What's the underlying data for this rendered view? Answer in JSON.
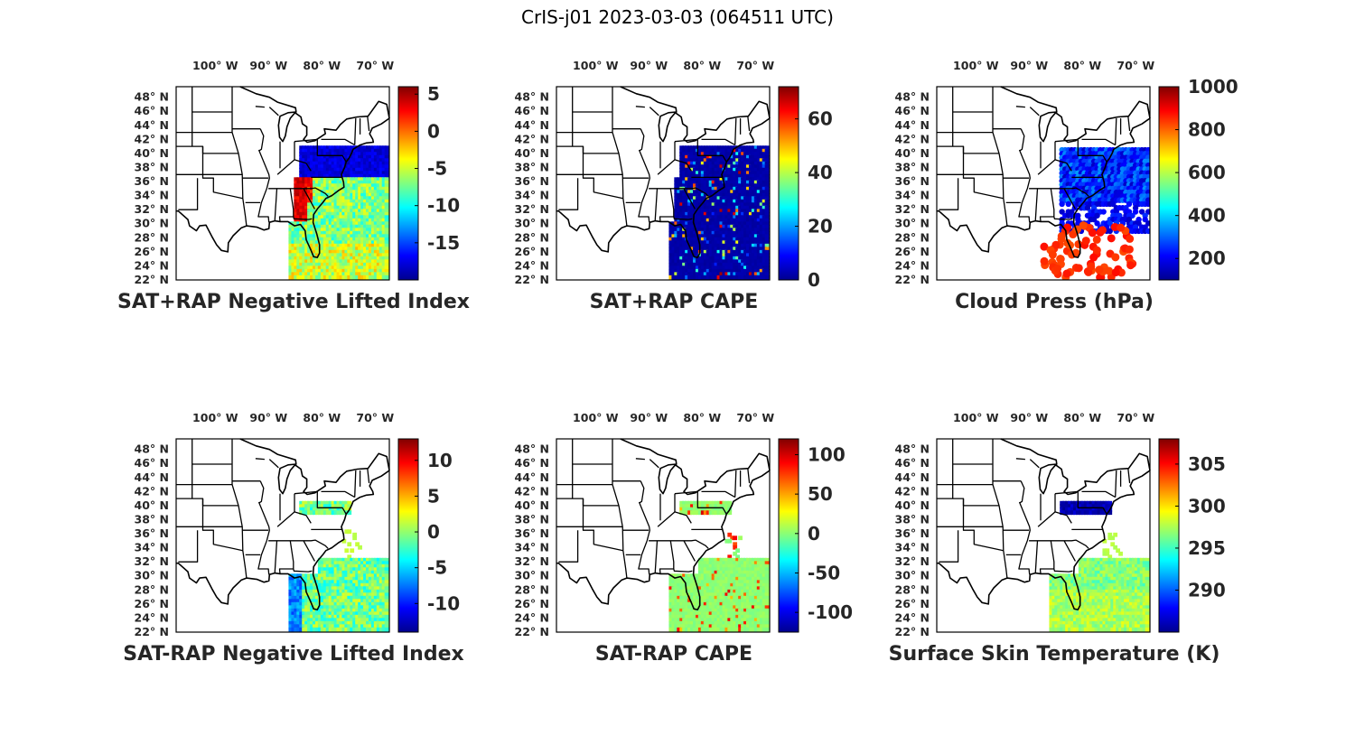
{
  "title": "CrIS-j01 2023-03-03 (064511 UTC)",
  "colormap": [
    "#00008f",
    "#0000ff",
    "#0080ff",
    "#00ffff",
    "#80ff80",
    "#ffff00",
    "#ff8000",
    "#ff0000",
    "#800000"
  ],
  "lon_ticks": [
    "100° W",
    "90° W",
    "80° W",
    "70° W"
  ],
  "lat_ticks": [
    "48° N",
    "46° N",
    "44° N",
    "42° N",
    "40° N",
    "38° N",
    "36° N",
    "34° N",
    "32° N",
    "30° N",
    "28° N",
    "26° N",
    "24° N",
    "22° N"
  ],
  "panels": [
    {
      "title": "SAT+RAP Negative Lifted Index",
      "cbar_min": -20,
      "cbar_max": 6,
      "cbar_ticks": [
        5,
        0,
        -5,
        -10,
        -15
      ],
      "field": "li"
    },
    {
      "title": "SAT+RAP CAPE",
      "cbar_min": 0,
      "cbar_max": 72,
      "cbar_ticks": [
        60,
        40,
        20,
        0
      ],
      "field": "cape"
    },
    {
      "title": "Cloud Press (hPa)",
      "cbar_min": 100,
      "cbar_max": 1000,
      "cbar_ticks": [
        1000,
        800,
        600,
        400,
        200
      ],
      "field": "cloud"
    },
    {
      "title": "SAT-RAP Negative Lifted Index",
      "cbar_min": -14,
      "cbar_max": 13,
      "cbar_ticks": [
        10,
        5,
        0,
        -5,
        -10
      ],
      "field": "dli"
    },
    {
      "title": "SAT-RAP CAPE",
      "cbar_min": -125,
      "cbar_max": 120,
      "cbar_ticks": [
        100,
        50,
        0,
        -50,
        -100
      ],
      "field": "dcape"
    },
    {
      "title": "Surface Skin Temperature (K)",
      "cbar_min": 285,
      "cbar_max": 308,
      "cbar_ticks": [
        305,
        300,
        295,
        290
      ],
      "field": "skin"
    }
  ]
}
